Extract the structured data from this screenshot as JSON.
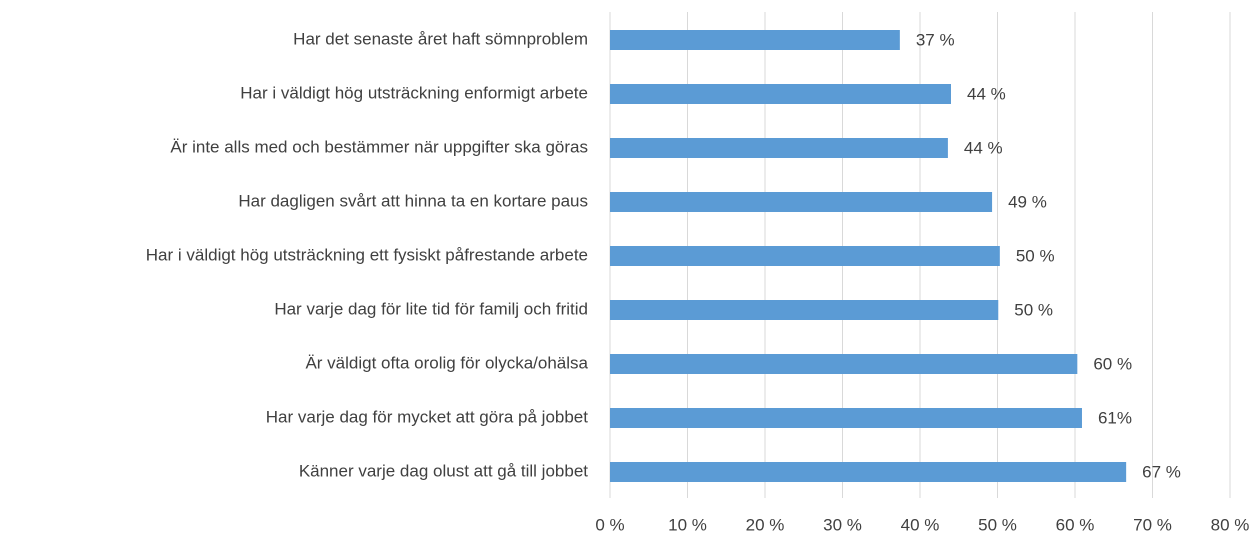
{
  "chart_data": {
    "type": "bar",
    "orientation": "horizontal",
    "categories": [
      "Har det senaste året haft sömnproblem",
      "Har i väldigt hög utsträckning enformigt arbete",
      "Är inte alls med och bestämmer när uppgifter ska göras",
      "Har dagligen svårt att hinna ta en kortare paus",
      "Har i väldigt hög utsträckning ett fysiskt påfrestande arbete",
      "Har varje dag för lite tid för familj och fritid",
      "Är väldigt ofta orolig för olycka/ohälsa",
      "Har varje dag för mycket att göra på jobbet",
      "Känner varje dag olust att gå till jobbet"
    ],
    "values": [
      37.4,
      44.0,
      43.6,
      49.3,
      50.3,
      50.1,
      60.3,
      60.9,
      66.6
    ],
    "value_labels": [
      "37 %",
      "44 %",
      "44 %",
      "49 %",
      "50 %",
      "50 %",
      "60 %",
      "61%",
      "67 %"
    ],
    "color": "#5b9bd5",
    "xlim": [
      0,
      80
    ],
    "xticks": [
      {
        "value": 0,
        "label": "0 %"
      },
      {
        "value": 10,
        "label": "10 %"
      },
      {
        "value": 20,
        "label": "20 %"
      },
      {
        "value": 30,
        "label": "30 %"
      },
      {
        "value": 40,
        "label": "40 %"
      },
      {
        "value": 50,
        "label": "50 %"
      },
      {
        "value": 60,
        "label": "60 %"
      },
      {
        "value": 70,
        "label": "70 %"
      },
      {
        "value": 80,
        "label": "80 %"
      }
    ],
    "grid": true
  }
}
